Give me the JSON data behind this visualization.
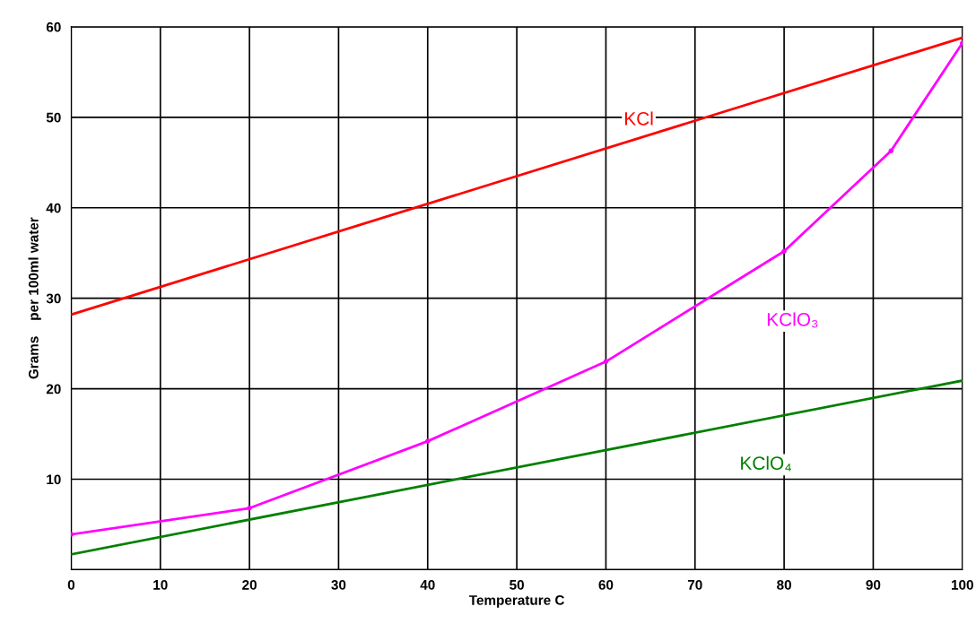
{
  "chart_data": {
    "type": "line",
    "xlabel": "Temperature C",
    "ylabel": "Grams    per 100ml water",
    "xlim": [
      0,
      100
    ],
    "ylim": [
      0,
      60
    ],
    "xticks": [
      {
        "value": 0,
        "label": "0"
      },
      10,
      20,
      30,
      40,
      50,
      60,
      70,
      80,
      90,
      100
    ],
    "yticks": [
      {
        "value": 0,
        "label": null
      },
      10,
      20,
      30,
      40,
      50,
      60
    ],
    "grid": true,
    "legend": false,
    "series": [
      {
        "name": "KCl",
        "color": "#ff0000",
        "x": [
          0,
          100
        ],
        "values": [
          28.2,
          58.8
        ],
        "marker": "none"
      },
      {
        "name": "KClO₃",
        "color": "#ff00ff",
        "x": [
          0,
          20,
          40,
          60,
          80,
          92,
          100
        ],
        "values": [
          3.9,
          6.8,
          14.2,
          23,
          35.2,
          46.3,
          58.2
        ],
        "marker": "circle"
      },
      {
        "name": "KClO₄",
        "color": "#008000",
        "x": [
          0,
          100
        ],
        "values": [
          1.7,
          20.9
        ],
        "marker": "none"
      }
    ]
  }
}
